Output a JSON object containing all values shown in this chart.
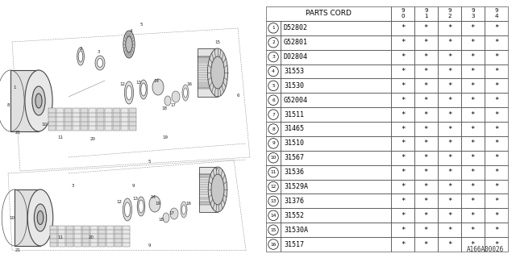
{
  "diagram_code": "A166A00026",
  "bg_color": "#ffffff",
  "line_color": "#555555",
  "text_color": "#000000",
  "header_row": [
    "PARTS CORD",
    "9\n0",
    "9\n1",
    "9\n2",
    "9\n3",
    "9\n4"
  ],
  "parts": [
    [
      "D52802",
      "*",
      "*",
      "*",
      "*",
      "*"
    ],
    [
      "G52801",
      "*",
      "*",
      "*",
      "*",
      "*"
    ],
    [
      "D02804",
      "*",
      "*",
      "*",
      "*",
      "*"
    ],
    [
      "31553",
      "*",
      "*",
      "*",
      "*",
      "*"
    ],
    [
      "31530",
      "*",
      "*",
      "*",
      "*",
      "*"
    ],
    [
      "G52004",
      "*",
      "*",
      "*",
      "*",
      "*"
    ],
    [
      "31511",
      "*",
      "*",
      "*",
      "*",
      "*"
    ],
    [
      "31465",
      "*",
      "*",
      "*",
      "*",
      "*"
    ],
    [
      "31510",
      "*",
      "*",
      "*",
      "*",
      "*"
    ],
    [
      "31567",
      "*",
      "*",
      "*",
      "*",
      "*"
    ],
    [
      "31536",
      "*",
      "*",
      "*",
      "*",
      "*"
    ],
    [
      "31529A",
      "*",
      "*",
      "*",
      "*",
      "*"
    ],
    [
      "31376",
      "*",
      "*",
      "*",
      "*",
      "*"
    ],
    [
      "31552",
      "*",
      "*",
      "*",
      "*",
      "*"
    ],
    [
      "31530A",
      "*",
      "*",
      "*",
      "*",
      "*"
    ],
    [
      "31517",
      "*",
      "*",
      "*",
      "*",
      "*"
    ]
  ],
  "part_numbers": [
    "1",
    "2",
    "3",
    "4",
    "5",
    "6",
    "7",
    "8",
    "9",
    "10",
    "11",
    "12",
    "13",
    "14",
    "15",
    "16"
  ],
  "font_size": 6.0,
  "header_font_size": 6.5,
  "small_label_size": 4.0
}
